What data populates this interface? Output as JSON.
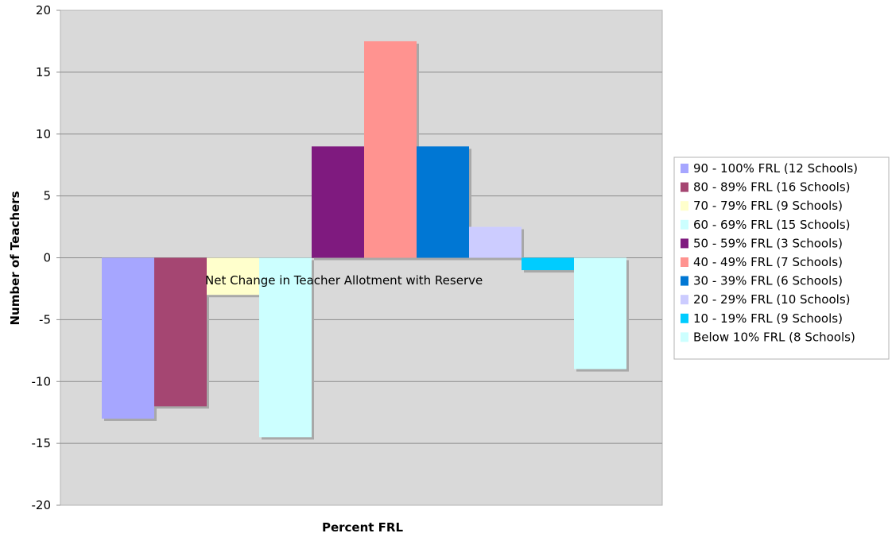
{
  "chart_data": {
    "type": "bar",
    "title": "Net Change in Teacher Allotment with Reserve",
    "xlabel": "Percent FRL",
    "ylabel": "Number of Teachers",
    "ylim": [
      -20,
      20
    ],
    "yticks": [
      20,
      15,
      10,
      5,
      0,
      -5,
      -10,
      -15,
      -20
    ],
    "grid": true,
    "legend_position": "right",
    "series": [
      {
        "name": "90 - 100% FRL (12 Schools)",
        "value": -13,
        "color": "#a6a6ff"
      },
      {
        "name": "80 - 89% FRL (16 Schools)",
        "value": -12,
        "color": "#a54672"
      },
      {
        "name": "70 - 79% FRL (9 Schools)",
        "value": -3,
        "color": "#ffffcc"
      },
      {
        "name": "60 - 69% FRL (15 Schools)",
        "value": -14.5,
        "color": "#ccffff"
      },
      {
        "name": "50 - 59% FRL (3 Schools)",
        "value": 9,
        "color": "#7f1a7f"
      },
      {
        "name": "40 - 49% FRL (7 Schools)",
        "value": 17.5,
        "color": "#ff9390"
      },
      {
        "name": "30 - 39% FRL (6 Schools)",
        "value": 9,
        "color": "#0077d4"
      },
      {
        "name": "20 - 29% FRL (10 Schools)",
        "value": 2.5,
        "color": "#ccccff"
      },
      {
        "name": "10 - 19% FRL (9 Schools)",
        "value": -1,
        "color": "#00ccff"
      },
      {
        "name": "Below 10% FRL (8 Schools)",
        "value": -9,
        "color": "#ccffff"
      }
    ]
  }
}
